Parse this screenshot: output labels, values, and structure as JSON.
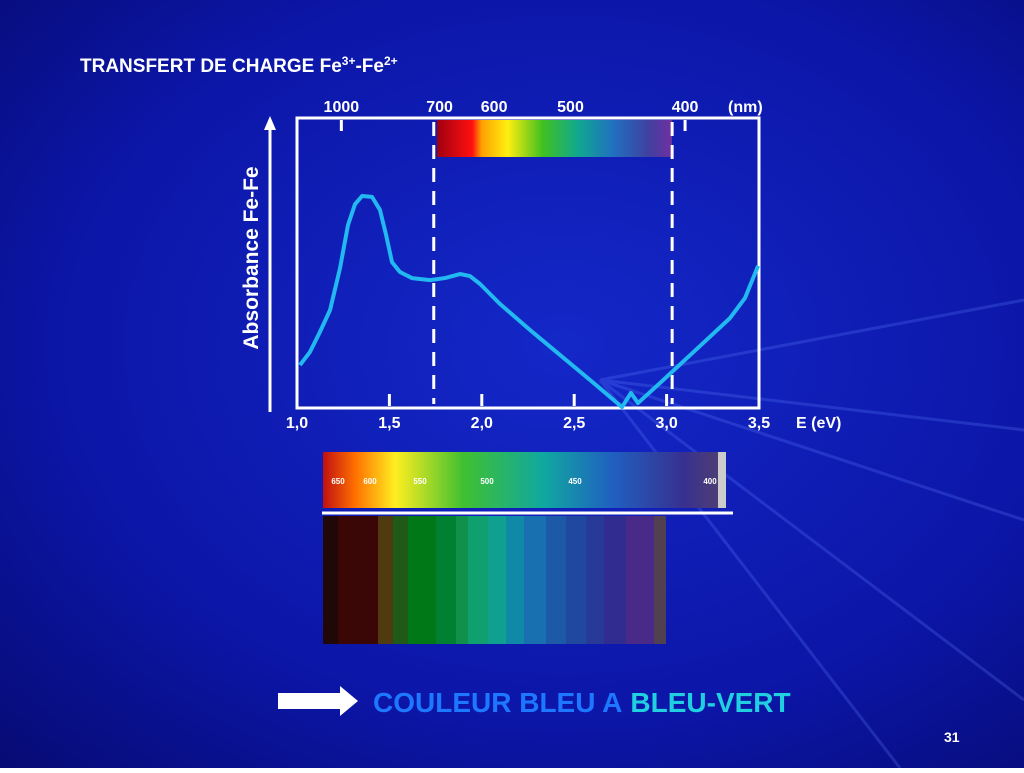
{
  "chart_data": {
    "type": "line",
    "title": [
      "TRANSFERT DE CHARGE Fe",
      "3+",
      "-Fe",
      "2+"
    ],
    "ylabel": "Absorbance Fe-Fe",
    "xlabel": "E (eV)",
    "x2label": "(nm)",
    "xlim": [
      1,
      3.5
    ],
    "xticks": [
      {
        "value": 1,
        "label": "1,0"
      },
      {
        "value": 1.5,
        "label": "1,5"
      },
      {
        "value": 2,
        "label": "2,0"
      },
      {
        "value": 2.5,
        "label": "2,5"
      },
      {
        "value": 3,
        "label": "3,0"
      },
      {
        "value": 3.5,
        "label": "3,5"
      }
    ],
    "x2ticks": [
      1000,
      700,
      600,
      500,
      400
    ],
    "ylim": [
      0,
      1
    ],
    "vlines": [
      1.74,
      3.03
    ],
    "series": [
      {
        "color": "#22b8f0",
        "x": [
          1.016,
          1.07,
          1.124,
          1.179,
          1.233,
          1.276,
          1.314,
          1.352,
          1.406,
          1.449,
          1.482,
          1.514,
          1.557,
          1.622,
          1.72,
          1.801,
          1.882,
          1.936,
          1.99,
          2.098,
          2.261,
          2.423,
          2.585,
          2.759,
          2.807,
          2.845,
          2.964,
          3.181,
          3.343,
          3.424,
          3.495
        ],
        "values": [
          0.148,
          0.193,
          0.262,
          0.338,
          0.483,
          0.631,
          0.703,
          0.731,
          0.728,
          0.683,
          0.597,
          0.503,
          0.469,
          0.448,
          0.441,
          0.448,
          0.462,
          0.455,
          0.428,
          0.359,
          0.269,
          0.183,
          0.097,
          0.003,
          0.052,
          0.017,
          0.086,
          0.214,
          0.31,
          0.379,
          0.49
        ]
      }
    ]
  },
  "spectrum_scale": [
    650,
    600,
    550,
    500,
    450,
    400
  ],
  "conclusion": [
    "COULEUR BLEU A",
    "BLEU-VERT"
  ],
  "page_number": "31"
}
